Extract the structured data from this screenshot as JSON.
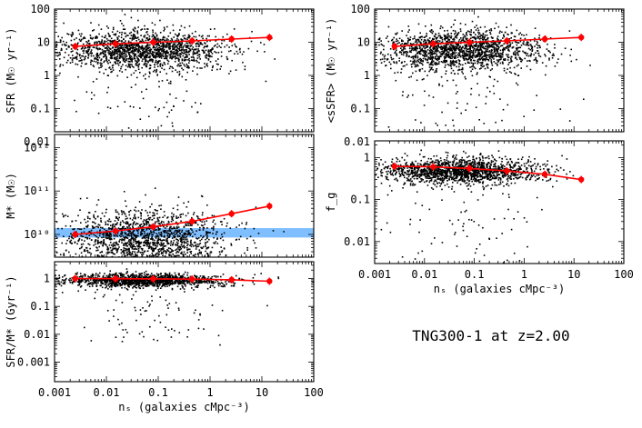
{
  "figure_title": "TNG300-1 at z=2.00",
  "chart_data": [
    {
      "id": "sfr",
      "type": "scatter",
      "ylabel": "SFR (M☉ yr⁻¹)",
      "xlabel": "",
      "xscale": "log",
      "yscale": "log",
      "xlim": [
        0.001,
        100
      ],
      "ylim": [
        0.02,
        100
      ],
      "yticks": [
        {
          "v": 100,
          "label": "100"
        },
        {
          "v": 10,
          "label": "10"
        },
        {
          "v": 1,
          "label": "1"
        },
        {
          "v": 0.1,
          "label": "0.1"
        },
        {
          "v": 0.01,
          "label": "0.01"
        }
      ],
      "xticks": [],
      "cloud": {
        "x_median": 0.05,
        "x_sigma_dex": 0.8,
        "y_median": 6,
        "y_sigma_dex": 0.3,
        "n": 1700
      },
      "trend": {
        "x": [
          0.0025,
          0.015,
          0.08,
          0.45,
          2.6,
          14
        ],
        "y": [
          7.5,
          9,
          10,
          11,
          12.5,
          14
        ]
      }
    },
    {
      "id": "mstar",
      "type": "scatter",
      "ylabel": "M* (M☉)",
      "xlabel": "",
      "xscale": "log",
      "yscale": "log",
      "xlim": [
        0.001,
        100
      ],
      "ylim": [
        3000000000.0,
        2000000000000.0
      ],
      "yticks": [
        {
          "v": 1000000000000.0,
          "label": "10¹²"
        },
        {
          "v": 100000000000.0,
          "label": "10¹¹"
        },
        {
          "v": 10000000000.0,
          "label": "10¹⁰"
        }
      ],
      "xticks": [],
      "band": {
        "y_low": 8500000000.0,
        "y_high": 14000000000.0,
        "color": "#7fbfff"
      },
      "cloud": {
        "x_median": 0.05,
        "x_sigma_dex": 0.8,
        "y_median": 8000000000.0,
        "y_sigma_dex": 0.35,
        "n": 1700
      },
      "trend": {
        "x": [
          0.0025,
          0.015,
          0.08,
          0.45,
          2.6,
          14
        ],
        "y": [
          10000000000.0,
          12000000000.0,
          15000000000.0,
          20000000000.0,
          30000000000.0,
          45000000000.0
        ]
      }
    },
    {
      "id": "ssfr",
      "type": "scatter",
      "ylabel": "SFR/M* (Gyr⁻¹)",
      "xlabel": "nₛ (galaxies cMpc⁻³)",
      "xscale": "log",
      "yscale": "log",
      "xlim": [
        0.001,
        100
      ],
      "ylim": [
        0.0002,
        4
      ],
      "yticks": [
        {
          "v": 1,
          "label": "1"
        },
        {
          "v": 0.1,
          "label": "0.1"
        },
        {
          "v": 0.01,
          "label": "0.01"
        },
        {
          "v": 0.001,
          "label": "0.001"
        }
      ],
      "xticks": [
        {
          "v": 0.001,
          "label": "0.001"
        },
        {
          "v": 0.01,
          "label": "0.01"
        },
        {
          "v": 0.1,
          "label": "0.1"
        },
        {
          "v": 1,
          "label": "1"
        },
        {
          "v": 10,
          "label": "10"
        },
        {
          "v": 100,
          "label": "100"
        }
      ],
      "cloud": {
        "x_median": 0.05,
        "x_sigma_dex": 0.8,
        "y_median": 0.9,
        "y_sigma_dex": 0.12,
        "n": 1500
      },
      "trend": {
        "x": [
          0.0025,
          0.015,
          0.08,
          0.45,
          2.6,
          14
        ],
        "y": [
          1.0,
          0.98,
          0.97,
          0.95,
          0.9,
          0.8
        ]
      }
    },
    {
      "id": "mean_ssfr",
      "type": "scatter",
      "ylabel": "<sSFR> (M☉ yr⁻¹)",
      "xlabel": "",
      "xscale": "log",
      "yscale": "log",
      "xlim": [
        0.001,
        100
      ],
      "ylim": [
        0.02,
        100
      ],
      "yticks": [
        {
          "v": 100,
          "label": "100"
        },
        {
          "v": 10,
          "label": "10"
        },
        {
          "v": 1,
          "label": "1"
        },
        {
          "v": 0.1,
          "label": "0.1"
        },
        {
          "v": 0.01,
          "label": "0.01"
        }
      ],
      "xticks": [],
      "cloud": {
        "x_median": 0.05,
        "x_sigma_dex": 0.8,
        "y_median": 6,
        "y_sigma_dex": 0.3,
        "n": 1700
      },
      "trend": {
        "x": [
          0.0025,
          0.015,
          0.08,
          0.45,
          2.6,
          14
        ],
        "y": [
          7.5,
          9,
          10,
          11,
          12.5,
          14
        ]
      }
    },
    {
      "id": "fg",
      "type": "scatter",
      "ylabel": "f_g",
      "xlabel": "nₛ (galaxies cMpc⁻³)",
      "xscale": "log",
      "yscale": "log",
      "xlim": [
        0.001,
        100
      ],
      "ylim": [
        0.003,
        2.5
      ],
      "yticks": [
        {
          "v": 1,
          "label": "1"
        },
        {
          "v": 0.1,
          "label": "0.1"
        },
        {
          "v": 0.01,
          "label": "0.01"
        }
      ],
      "xticks": [
        {
          "v": 0.001,
          "label": "0.001"
        },
        {
          "v": 0.01,
          "label": "0.01"
        },
        {
          "v": 0.1,
          "label": "0.1"
        },
        {
          "v": 1,
          "label": "1"
        },
        {
          "v": 10,
          "label": "10"
        },
        {
          "v": 100,
          "label": "100"
        }
      ],
      "cloud": {
        "x_median": 0.05,
        "x_sigma_dex": 0.8,
        "y_median": 0.5,
        "y_sigma_dex": 0.15,
        "n": 1700
      },
      "trend": {
        "x": [
          0.0025,
          0.015,
          0.08,
          0.45,
          2.6,
          14
        ],
        "y": [
          0.62,
          0.6,
          0.55,
          0.48,
          0.4,
          0.3
        ]
      }
    }
  ],
  "colors": {
    "points": "#000000",
    "trend": "#ff0000",
    "band": "#7fbfff"
  }
}
